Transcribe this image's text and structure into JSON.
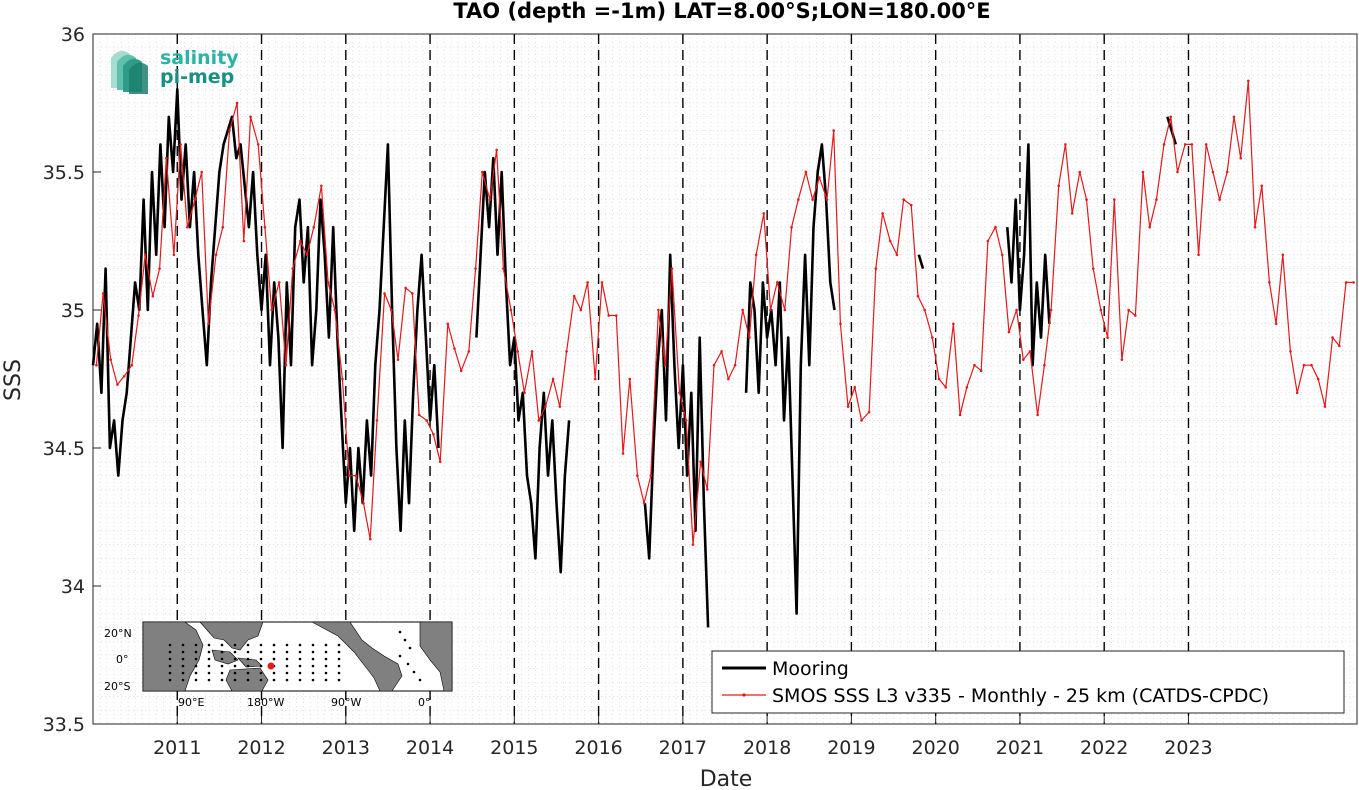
{
  "chart_data": {
    "type": "line",
    "title": "TAO (depth =-1m) LAT=8.00°S;LON=180.00°E",
    "xlabel": "Date",
    "ylabel": "SSS",
    "xlim": [
      "2010-01-01",
      "2024-12-31"
    ],
    "ylim": [
      33.5,
      36.0
    ],
    "x_ticks": [
      "2011",
      "2012",
      "2013",
      "2014",
      "2015",
      "2016",
      "2017",
      "2018",
      "2019",
      "2020",
      "2021",
      "2022",
      "2023"
    ],
    "y_ticks": [
      "33.5",
      "34",
      "34.5",
      "35",
      "35.5",
      "36"
    ],
    "grid": "minor-dotted",
    "year_markers": "dashed-vertical",
    "legend_position": "bottom-right",
    "series": [
      {
        "name": "Mooring",
        "color": "#000000",
        "style": "thick-line",
        "segments": [
          [
            [
              2010.0,
              34.8
            ],
            [
              2010.05,
              34.95
            ],
            [
              2010.1,
              34.7
            ],
            [
              2010.15,
              35.15
            ],
            [
              2010.2,
              34.5
            ],
            [
              2010.25,
              34.6
            ],
            [
              2010.3,
              34.4
            ],
            [
              2010.35,
              34.6
            ],
            [
              2010.4,
              34.7
            ],
            [
              2010.45,
              34.9
            ],
            [
              2010.5,
              35.1
            ],
            [
              2010.55,
              35.0
            ],
            [
              2010.6,
              35.4
            ],
            [
              2010.65,
              35.0
            ],
            [
              2010.7,
              35.5
            ],
            [
              2010.75,
              35.2
            ],
            [
              2010.8,
              35.6
            ],
            [
              2010.85,
              35.3
            ],
            [
              2010.9,
              35.7
            ],
            [
              2010.95,
              35.5
            ],
            [
              2011.0,
              35.8
            ],
            [
              2011.05,
              35.4
            ],
            [
              2011.1,
              35.6
            ],
            [
              2011.15,
              35.3
            ],
            [
              2011.2,
              35.5
            ],
            [
              2011.25,
              35.2
            ],
            [
              2011.3,
              35.0
            ],
            [
              2011.35,
              34.8
            ],
            [
              2011.4,
              35.1
            ],
            [
              2011.45,
              35.3
            ],
            [
              2011.5,
              35.5
            ],
            [
              2011.55,
              35.6
            ],
            [
              2011.6,
              35.65
            ],
            [
              2011.65,
              35.7
            ],
            [
              2011.7,
              35.55
            ],
            [
              2011.75,
              35.6
            ],
            [
              2011.8,
              35.45
            ],
            [
              2011.85,
              35.3
            ],
            [
              2011.9,
              35.5
            ],
            [
              2011.95,
              35.2
            ],
            [
              2012.0,
              35.0
            ],
            [
              2012.05,
              35.2
            ],
            [
              2012.1,
              34.8
            ],
            [
              2012.15,
              35.1
            ],
            [
              2012.2,
              34.9
            ],
            [
              2012.25,
              34.5
            ],
            [
              2012.3,
              35.1
            ],
            [
              2012.35,
              34.8
            ],
            [
              2012.4,
              35.3
            ],
            [
              2012.45,
              35.4
            ],
            [
              2012.5,
              35.1
            ],
            [
              2012.55,
              35.3
            ],
            [
              2012.6,
              34.8
            ],
            [
              2012.65,
              35.0
            ],
            [
              2012.7,
              35.4
            ],
            [
              2012.75,
              35.2
            ],
            [
              2012.8,
              34.9
            ],
            [
              2012.85,
              35.3
            ],
            [
              2012.9,
              34.9
            ],
            [
              2012.95,
              34.6
            ],
            [
              2013.0,
              34.3
            ],
            [
              2013.05,
              34.5
            ],
            [
              2013.1,
              34.2
            ],
            [
              2013.15,
              34.5
            ],
            [
              2013.2,
              34.3
            ],
            [
              2013.25,
              34.6
            ],
            [
              2013.3,
              34.4
            ],
            [
              2013.35,
              34.8
            ],
            [
              2013.4,
              35.0
            ],
            [
              2013.45,
              35.3
            ],
            [
              2013.5,
              35.6
            ],
            [
              2013.55,
              35.0
            ],
            [
              2013.6,
              34.5
            ],
            [
              2013.65,
              34.2
            ],
            [
              2013.7,
              34.6
            ],
            [
              2013.75,
              34.3
            ],
            [
              2013.8,
              34.7
            ],
            [
              2013.85,
              35.0
            ],
            [
              2013.9,
              35.2
            ],
            [
              2013.95,
              34.9
            ],
            [
              2014.0,
              34.6
            ],
            [
              2014.05,
              34.8
            ],
            [
              2014.1,
              34.5
            ]
          ],
          [
            [
              2014.55,
              34.9
            ],
            [
              2014.6,
              35.2
            ],
            [
              2014.65,
              35.5
            ],
            [
              2014.7,
              35.3
            ],
            [
              2014.75,
              35.55
            ],
            [
              2014.8,
              35.2
            ],
            [
              2014.85,
              35.5
            ],
            [
              2014.9,
              35.1
            ],
            [
              2014.95,
              34.8
            ],
            [
              2015.0,
              34.9
            ],
            [
              2015.05,
              34.6
            ],
            [
              2015.1,
              34.7
            ],
            [
              2015.15,
              34.4
            ],
            [
              2015.2,
              34.3
            ],
            [
              2015.25,
              34.1
            ],
            [
              2015.3,
              34.5
            ],
            [
              2015.35,
              34.7
            ],
            [
              2015.4,
              34.4
            ],
            [
              2015.45,
              34.6
            ],
            [
              2015.5,
              34.3
            ],
            [
              2015.55,
              34.05
            ],
            [
              2015.6,
              34.4
            ],
            [
              2015.65,
              34.6
            ]
          ],
          [
            [
              2016.55,
              34.3
            ],
            [
              2016.6,
              34.1
            ],
            [
              2016.65,
              34.5
            ],
            [
              2016.7,
              34.8
            ],
            [
              2016.75,
              35.0
            ],
            [
              2016.8,
              34.6
            ],
            [
              2016.85,
              35.2
            ],
            [
              2016.9,
              34.8
            ],
            [
              2016.95,
              34.5
            ],
            [
              2017.0,
              34.8
            ],
            [
              2017.05,
              34.4
            ],
            [
              2017.1,
              34.7
            ],
            [
              2017.15,
              34.2
            ],
            [
              2017.2,
              34.9
            ],
            [
              2017.25,
              34.3
            ],
            [
              2017.3,
              33.85
            ]
          ],
          [
            [
              2017.75,
              34.7
            ],
            [
              2017.8,
              35.1
            ],
            [
              2017.85,
              35.0
            ],
            [
              2017.9,
              34.7
            ],
            [
              2017.95,
              35.1
            ],
            [
              2018.0,
              34.9
            ],
            [
              2018.05,
              35.0
            ],
            [
              2018.1,
              34.8
            ],
            [
              2018.15,
              35.1
            ],
            [
              2018.2,
              34.6
            ],
            [
              2018.25,
              34.9
            ],
            [
              2018.3,
              34.4
            ],
            [
              2018.35,
              33.9
            ],
            [
              2018.4,
              34.8
            ],
            [
              2018.45,
              35.2
            ],
            [
              2018.5,
              34.8
            ],
            [
              2018.55,
              35.3
            ],
            [
              2018.6,
              35.5
            ],
            [
              2018.65,
              35.6
            ],
            [
              2018.7,
              35.4
            ],
            [
              2018.75,
              35.1
            ],
            [
              2018.8,
              35.0
            ]
          ],
          [
            [
              2019.8,
              35.2
            ],
            [
              2019.85,
              35.15
            ]
          ],
          [
            [
              2020.85,
              35.3
            ],
            [
              2020.9,
              35.1
            ],
            [
              2020.95,
              35.4
            ],
            [
              2021.0,
              35.0
            ],
            [
              2021.05,
              35.2
            ],
            [
              2021.1,
              35.6
            ],
            [
              2021.15,
              34.8
            ],
            [
              2021.2,
              35.1
            ],
            [
              2021.25,
              34.9
            ],
            [
              2021.3,
              35.2
            ],
            [
              2021.35,
              34.95
            ]
          ],
          [
            [
              2022.75,
              35.7
            ],
            [
              2022.8,
              35.65
            ],
            [
              2022.85,
              35.6
            ]
          ]
        ]
      },
      {
        "name": "SMOS SSS L3 v335 - Monthly - 25 km (CATDS-CPDC)",
        "color": "#e41a1c",
        "style": "thin-line-with-dots",
        "x": [
          2010.04,
          2010.12,
          2010.21,
          2010.29,
          2010.37,
          2010.46,
          2010.54,
          2010.62,
          2010.71,
          2010.79,
          2010.87,
          2010.96,
          2011.04,
          2011.12,
          2011.21,
          2011.29,
          2011.37,
          2011.46,
          2011.54,
          2011.62,
          2011.71,
          2011.79,
          2011.87,
          2011.96,
          2012.04,
          2012.12,
          2012.21,
          2012.29,
          2012.37,
          2012.46,
          2012.54,
          2012.62,
          2012.71,
          2012.79,
          2012.87,
          2012.96,
          2013.04,
          2013.12,
          2013.21,
          2013.29,
          2013.37,
          2013.46,
          2013.54,
          2013.62,
          2013.71,
          2013.79,
          2013.87,
          2013.96,
          2014.04,
          2014.12,
          2014.21,
          2014.29,
          2014.37,
          2014.46,
          2014.54,
          2014.62,
          2014.71,
          2014.79,
          2014.87,
          2014.96,
          2015.04,
          2015.12,
          2015.21,
          2015.29,
          2015.37,
          2015.46,
          2015.54,
          2015.62,
          2015.71,
          2015.79,
          2015.87,
          2015.96,
          2016.04,
          2016.12,
          2016.21,
          2016.29,
          2016.37,
          2016.46,
          2016.54,
          2016.62,
          2016.71,
          2016.79,
          2016.87,
          2016.96,
          2017.04,
          2017.12,
          2017.21,
          2017.29,
          2017.37,
          2017.46,
          2017.54,
          2017.62,
          2017.71,
          2017.79,
          2017.87,
          2017.96,
          2018.04,
          2018.12,
          2018.21,
          2018.29,
          2018.37,
          2018.46,
          2018.54,
          2018.62,
          2018.71,
          2018.79,
          2018.87,
          2018.96,
          2019.04,
          2019.12,
          2019.21,
          2019.29,
          2019.37,
          2019.46,
          2019.54,
          2019.62,
          2019.71,
          2019.79,
          2019.87,
          2019.96,
          2020.04,
          2020.12,
          2020.21,
          2020.29,
          2020.37,
          2020.46,
          2020.54,
          2020.62,
          2020.71,
          2020.79,
          2020.87,
          2020.96,
          2021.04,
          2021.12,
          2021.21,
          2021.29,
          2021.37,
          2021.46,
          2021.54,
          2021.62,
          2021.71,
          2021.79,
          2021.87,
          2021.96,
          2022.04,
          2022.12,
          2022.21,
          2022.29,
          2022.37,
          2022.46,
          2022.54,
          2022.62,
          2022.71,
          2022.79,
          2022.87,
          2022.96,
          2023.04,
          2023.12,
          2023.21,
          2023.29,
          2023.37,
          2023.46,
          2023.54,
          2023.62,
          2023.71,
          2023.79,
          2023.87,
          2023.96,
          2024.04,
          2024.12,
          2024.21,
          2024.29,
          2024.37,
          2024.46,
          2024.54,
          2024.62,
          2024.71,
          2024.79,
          2024.87,
          2024.96
        ],
        "y": [
          34.8,
          35.06,
          34.82,
          34.73,
          34.76,
          34.8,
          34.98,
          35.2,
          35.05,
          35.15,
          35.55,
          35.2,
          35.6,
          35.3,
          35.4,
          35.5,
          34.95,
          35.2,
          35.3,
          35.65,
          35.75,
          35.25,
          35.7,
          35.6,
          35.3,
          35.0,
          35.1,
          34.8,
          35.15,
          35.25,
          35.2,
          35.3,
          35.45,
          35.1,
          35.0,
          34.75,
          34.4,
          34.4,
          34.3,
          34.17,
          34.6,
          35.06,
          35.0,
          34.82,
          35.08,
          35.06,
          34.62,
          34.6,
          34.55,
          34.45,
          34.95,
          34.86,
          34.78,
          34.85,
          35.15,
          35.5,
          35.4,
          35.58,
          35.15,
          35.0,
          34.85,
          34.7,
          34.85,
          34.6,
          34.65,
          34.75,
          34.65,
          34.85,
          35.05,
          35.0,
          35.1,
          34.75,
          35.1,
          34.98,
          34.98,
          34.48,
          34.75,
          34.4,
          34.3,
          34.4,
          35.0,
          34.8,
          35.15,
          34.7,
          34.6,
          34.15,
          34.45,
          34.35,
          34.8,
          34.85,
          34.75,
          34.8,
          35.0,
          34.9,
          35.2,
          35.35,
          35.0,
          35.1,
          35.0,
          35.3,
          35.4,
          35.5,
          35.4,
          35.48,
          35.4,
          35.65,
          34.95,
          34.65,
          34.72,
          34.6,
          34.63,
          35.15,
          35.35,
          35.25,
          35.2,
          35.4,
          35.38,
          35.05,
          35.0,
          34.9,
          34.75,
          34.72,
          34.95,
          34.62,
          34.72,
          34.8,
          34.78,
          35.25,
          35.3,
          35.2,
          34.92,
          35.0,
          34.82,
          34.85,
          34.62,
          34.8,
          35.0,
          35.45,
          35.6,
          35.35,
          35.5,
          35.4,
          35.15,
          35.0,
          34.9,
          35.4,
          34.82,
          35.0,
          34.98,
          35.5,
          35.3,
          35.4,
          35.6,
          35.7,
          35.5,
          35.6,
          35.6,
          35.2,
          35.6,
          35.5,
          35.4,
          35.5,
          35.7,
          35.55,
          35.83,
          35.3,
          35.45,
          35.1,
          34.95,
          35.2,
          34.85,
          34.7,
          34.8,
          34.8,
          34.75,
          34.65,
          34.9,
          34.87,
          35.1,
          35.1
        ]
      }
    ]
  },
  "inset_map": {
    "lat_labels": [
      "20°N",
      "0°",
      "20°S"
    ],
    "lon_labels": [
      "90°E",
      "180°W",
      "90°W",
      "0°"
    ],
    "land_color": "#808080",
    "station_color": "#000000",
    "highlight_color": "#e41a1c"
  },
  "logo": {
    "line1": "salinity",
    "line2": "pi-mep"
  }
}
